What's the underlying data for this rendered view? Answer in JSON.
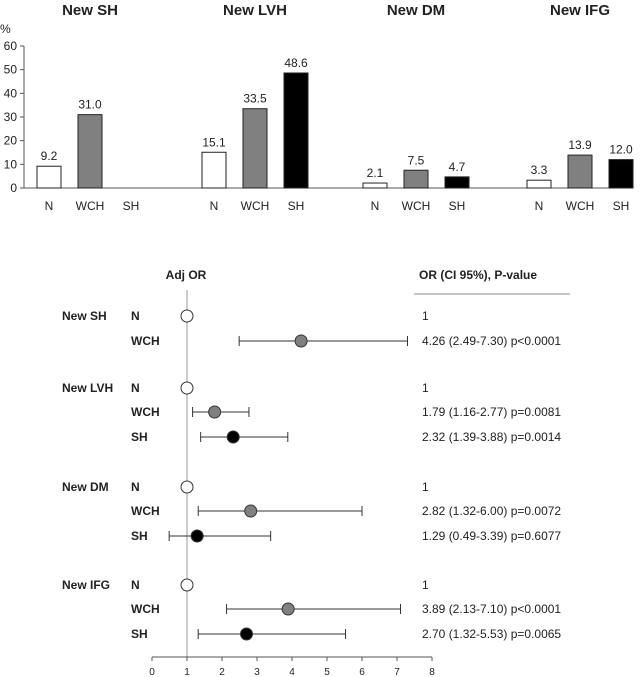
{
  "chart_data": [
    {
      "type": "bar",
      "ylabel": "%",
      "ylim": [
        0,
        60
      ],
      "yticks": [
        0,
        10,
        20,
        30,
        40,
        50,
        60
      ],
      "categories": [
        "N",
        "WCH",
        "SH"
      ],
      "category_colors": {
        "N": "#ffffff",
        "WCH": "#808080",
        "SH": "#000000"
      },
      "panels": [
        {
          "title": "New SH",
          "values": [
            9.2,
            31.0,
            null
          ],
          "labels": [
            "9.2",
            "31.0",
            ""
          ]
        },
        {
          "title": "New LVH",
          "values": [
            15.1,
            33.5,
            48.6
          ],
          "labels": [
            "15.1",
            "33.5",
            "48.6"
          ]
        },
        {
          "title": "New DM",
          "values": [
            2.1,
            7.5,
            4.7
          ],
          "labels": [
            "2.1",
            "7.5",
            "4.7"
          ]
        },
        {
          "title": "New IFG",
          "values": [
            3.3,
            13.9,
            12.0
          ],
          "labels": [
            "3.3",
            "13.9",
            "12.0"
          ]
        }
      ]
    },
    {
      "type": "forest",
      "title": "Adj OR",
      "table_header": "OR (CI 95%),  P-value",
      "xlim": [
        0,
        8
      ],
      "xticks": [
        "0",
        "1",
        "2",
        "3",
        "4",
        "5",
        "6",
        "7",
        "8"
      ],
      "reference_line": 1,
      "groups": [
        {
          "name": "New SH",
          "rows": [
            {
              "label": "N",
              "or": 1,
              "ci": null,
              "fill": "#ffffff",
              "text": "1"
            },
            {
              "label": "WCH",
              "or": 4.26,
              "ci": [
                2.49,
                7.3
              ],
              "fill": "#808080",
              "text": "4.26 (2.49-7.30) p<0.0001"
            }
          ]
        },
        {
          "name": "New LVH",
          "rows": [
            {
              "label": "N",
              "or": 1,
              "ci": null,
              "fill": "#ffffff",
              "text": "1"
            },
            {
              "label": "WCH",
              "or": 1.79,
              "ci": [
                1.16,
                2.77
              ],
              "fill": "#808080",
              "text": "1.79 (1.16-2.77) p=0.0081"
            },
            {
              "label": "SH",
              "or": 2.32,
              "ci": [
                1.39,
                3.88
              ],
              "fill": "#000000",
              "text": "2.32 (1.39-3.88) p=0.0014"
            }
          ]
        },
        {
          "name": "New DM",
          "rows": [
            {
              "label": "N",
              "or": 1,
              "ci": null,
              "fill": "#ffffff",
              "text": "1"
            },
            {
              "label": "WCH",
              "or": 2.82,
              "ci": [
                1.32,
                6.0
              ],
              "fill": "#808080",
              "text": "2.82 (1.32-6.00) p=0.0072"
            },
            {
              "label": "SH",
              "or": 1.29,
              "ci": [
                0.49,
                3.39
              ],
              "fill": "#000000",
              "text": "1.29 (0.49-3.39) p=0.6077"
            }
          ]
        },
        {
          "name": "New IFG",
          "rows": [
            {
              "label": "N",
              "or": 1,
              "ci": null,
              "fill": "#ffffff",
              "text": "1"
            },
            {
              "label": "WCH",
              "or": 3.89,
              "ci": [
                2.13,
                7.1
              ],
              "fill": "#808080",
              "text": "3.89 (2.13-7.10) p<0.0001"
            },
            {
              "label": "SH",
              "or": 2.7,
              "ci": [
                1.32,
                5.53
              ],
              "fill": "#000000",
              "text": "2.70 (1.32-5.53) p=0.0065"
            }
          ]
        }
      ]
    }
  ]
}
